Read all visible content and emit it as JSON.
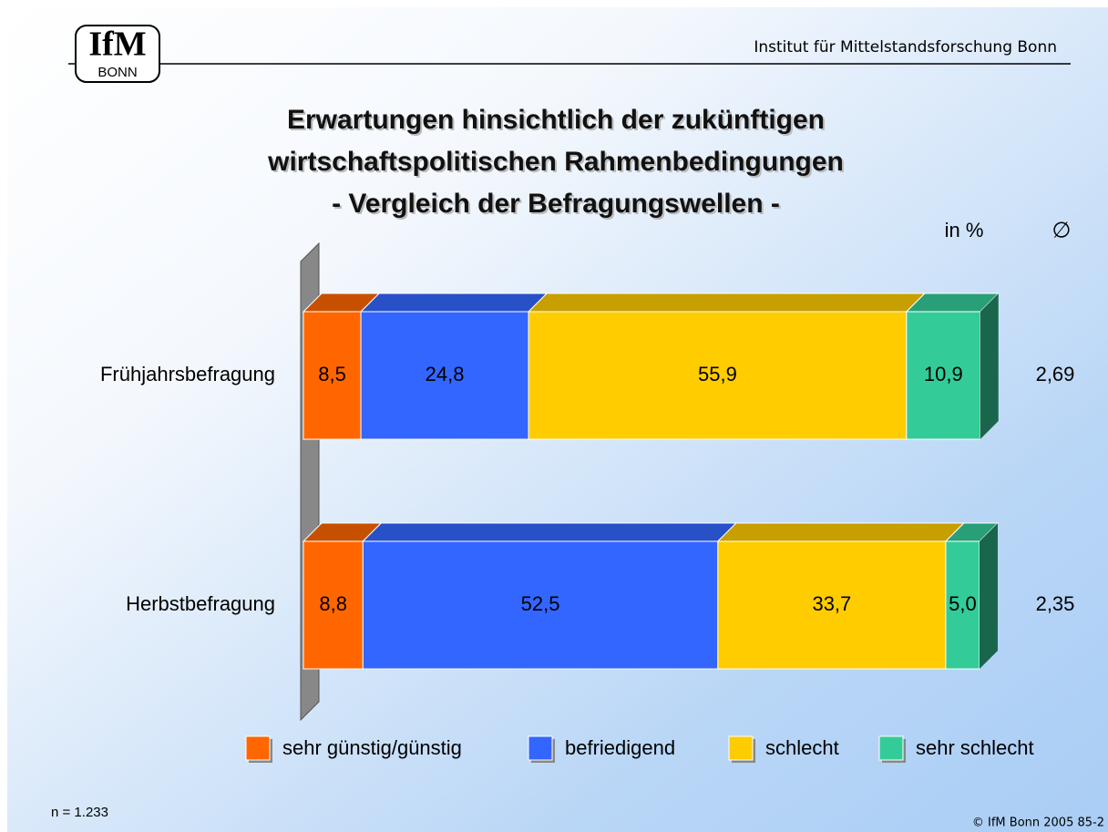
{
  "header": {
    "logo_top": "IfM",
    "logo_bottom": "BONN",
    "institute": "Institut für Mittelstandsforschung Bonn"
  },
  "chart_data": {
    "type": "bar",
    "title": [
      "Erwartungen hinsichtlich der zukünftigen",
      "wirtschaftspolitischen Rahmenbedingungen",
      "- Vergleich der Befragungswellen -"
    ],
    "unit_label": "in %",
    "mean_label": "∅",
    "categories": [
      "Frühjahrsbefragung",
      "Herbstbefragung"
    ],
    "series": [
      {
        "name": "sehr günstig/günstig",
        "color": "#ff6600",
        "values": [
          8.5,
          8.8
        ],
        "value_labels": [
          "8,5",
          "8,8"
        ]
      },
      {
        "name": "befriedigend",
        "color": "#3366ff",
        "values": [
          24.8,
          52.5
        ],
        "value_labels": [
          "24,8",
          "52,5"
        ]
      },
      {
        "name": "schlecht",
        "color": "#ffcc00",
        "values": [
          55.9,
          33.7
        ],
        "value_labels": [
          "55,9",
          "33,7"
        ]
      },
      {
        "name": "sehr schlecht",
        "color": "#33cc99",
        "values": [
          10.9,
          5.0
        ],
        "value_labels": [
          "10,9",
          "5,0"
        ]
      }
    ],
    "means": [
      2.69,
      2.35
    ],
    "mean_value_labels": [
      "2,69",
      "2,35"
    ],
    "xlim": [
      0,
      100
    ]
  },
  "footer": {
    "sample": "n = 1.233",
    "copyright": "© IfM Bonn 2005  85-2"
  }
}
